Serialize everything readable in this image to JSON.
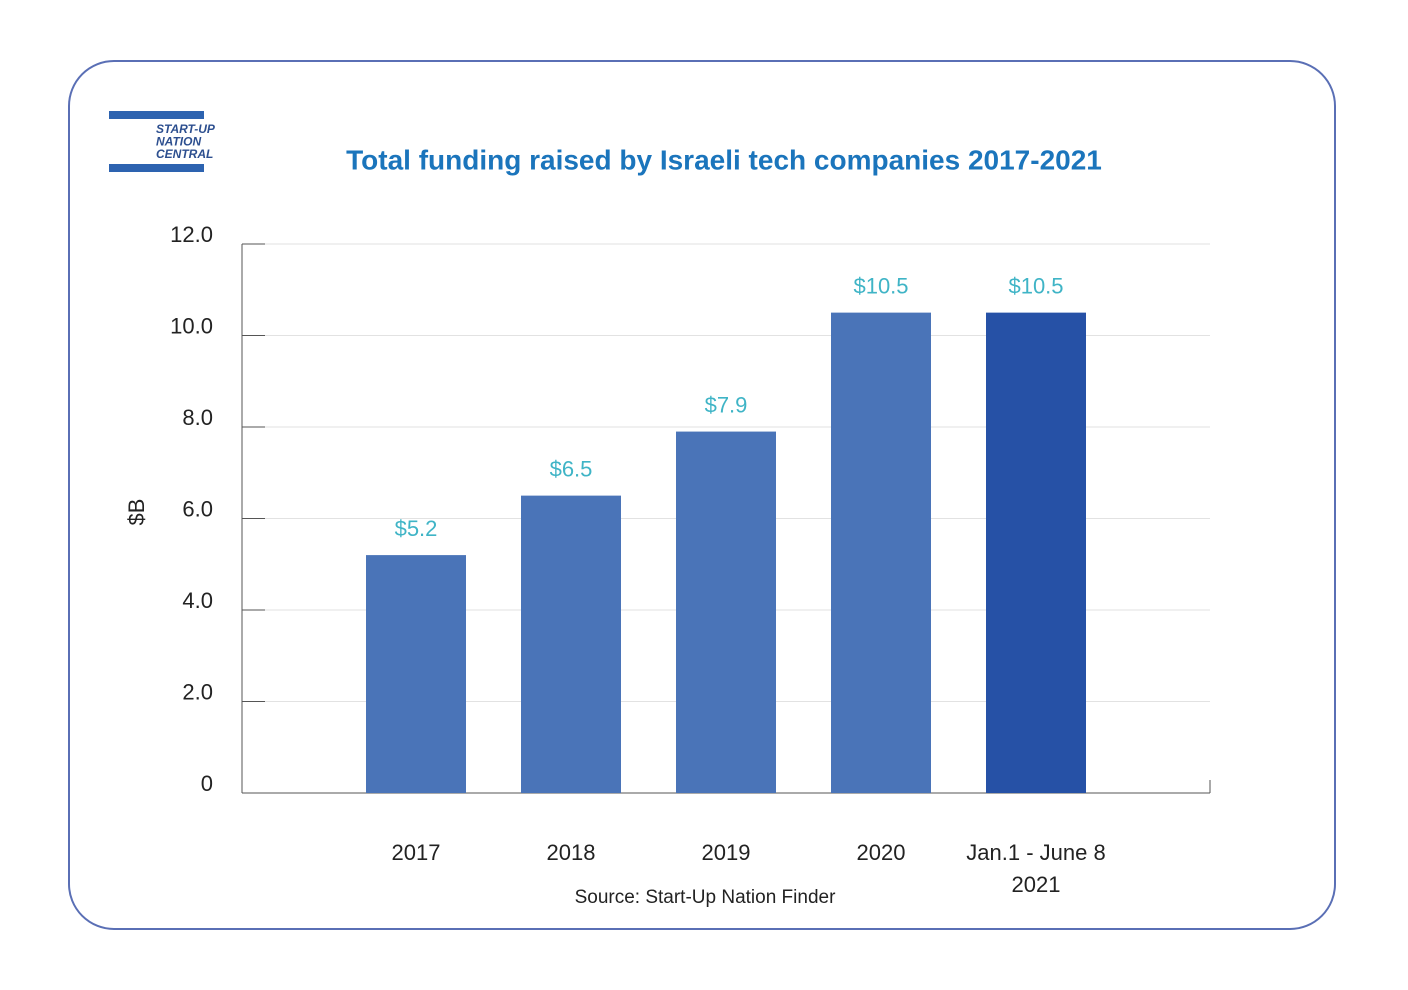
{
  "logo": [
    "START-UP",
    "NATION",
    "CENTRAL"
  ],
  "chart_data": {
    "type": "bar",
    "title": "Total funding raised by Israeli tech companies 2017-2021",
    "y_label": "$B",
    "source": "Source: Start-Up Nation Finder",
    "categories": [
      "2017",
      "2018",
      "2019",
      "2020",
      "Jan.1 - June 8\n2021"
    ],
    "values": [
      5.2,
      6.5,
      7.9,
      10.5,
      10.5
    ],
    "value_labels": [
      "$5.2",
      "$6.5",
      "$7.9",
      "$10.5",
      "$10.5"
    ],
    "colors": [
      "#4a74b8",
      "#4a74b8",
      "#4a74b8",
      "#4a74b8",
      "#2651a6"
    ],
    "value_label_color": "#3fb4c6",
    "ylim": [
      0,
      12
    ],
    "yticks": [
      0,
      {
        "value": 2,
        "label": "2.0"
      },
      {
        "value": 4,
        "label": "4.0"
      },
      {
        "value": 6,
        "label": "6.0"
      },
      {
        "value": 8,
        "label": "8.0"
      },
      {
        "value": 10,
        "label": "10.0"
      },
      {
        "value": 12,
        "label": "12.0"
      }
    ],
    "grid": true
  }
}
